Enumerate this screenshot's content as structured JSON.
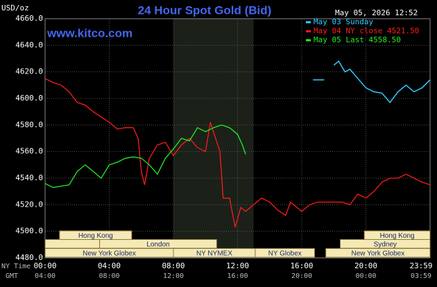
{
  "chart_data": {
    "type": "line",
    "title": "24 Hour Spot Gold (Bid)",
    "date": "May 05, 2026 12:52",
    "site": "www.kitco.com",
    "y_label": "USD/oz",
    "x_label": "NY Time",
    "x2_label": "GMT",
    "ylim": [
      4480,
      4660
    ],
    "yticks": [
      {
        "value": 4480,
        "label": "4480.0"
      },
      {
        "value": 4500,
        "label": "4500.0"
      },
      {
        "value": 4520,
        "label": "4520.0"
      },
      {
        "value": 4540,
        "label": "4540.0"
      },
      {
        "value": 4560,
        "label": "4560.0"
      },
      {
        "value": 4580,
        "label": "4580.0"
      },
      {
        "value": 4600,
        "label": "4600.0"
      },
      {
        "value": 4620,
        "label": "4620.0"
      },
      {
        "value": 4640,
        "label": "4640.0"
      },
      {
        "value": 4660,
        "label": "4660.0"
      }
    ],
    "xlim": [
      0,
      24
    ],
    "xticks": [
      {
        "value": 0,
        "label": "00:00"
      },
      {
        "value": 4,
        "label": "04:00"
      },
      {
        "value": 8,
        "label": "08:00"
      },
      {
        "value": 12,
        "label": "12:00"
      },
      {
        "value": 16,
        "label": "16:00"
      },
      {
        "value": 20,
        "label": "20:00"
      },
      {
        "value": 24,
        "label": "23:59"
      }
    ],
    "x2ticks": [
      {
        "value": 0,
        "label": "04:00"
      },
      {
        "value": 4,
        "label": "08:00"
      },
      {
        "value": 8,
        "label": "12:00"
      },
      {
        "value": 12,
        "label": "16:00"
      },
      {
        "value": 16,
        "label": "20:00"
      },
      {
        "value": 20,
        "label": "00:00"
      },
      {
        "value": 24,
        "label": "03:59"
      }
    ],
    "grid": true,
    "highlight_x": [
      8,
      13
    ],
    "sessions": [
      {
        "label": "Hong Kong",
        "start": 0.9,
        "end": 5.4,
        "row": 0
      },
      {
        "label": "Hong Kong",
        "start": 19.9,
        "end": 24,
        "row": 0
      },
      {
        "start": 0,
        "end": 3.4,
        "row": 1
      },
      {
        "label": "London",
        "start": 3.4,
        "end": 10.7,
        "row": 1
      },
      {
        "label": "Sydney",
        "start": 18.4,
        "end": 24,
        "row": 1
      },
      {
        "label": "New York Globex",
        "start": 0,
        "end": 8,
        "row": 2
      },
      {
        "label": "NY NYMEX",
        "start": 8,
        "end": 13.1,
        "row": 2
      },
      {
        "label": "NY Globex",
        "start": 13.1,
        "end": 16.8,
        "row": 2
      },
      {
        "label": "New York Globex",
        "start": 17.5,
        "end": 24,
        "row": 2
      }
    ],
    "series": [
      {
        "name": "May 03 Sunday",
        "color": "#33ccff",
        "x": [
          16.7,
          17.4,
          17.5,
          18,
          18.3,
          18.7,
          19,
          19.5,
          20,
          20.5,
          21,
          21.5,
          22,
          22.5,
          23,
          23.5,
          24
        ],
        "values": [
          4614,
          4614,
          null,
          4625,
          4628,
          4620,
          4622,
          4615,
          4608,
          4605,
          4604,
          4597,
          4605,
          4610,
          4605,
          4608,
          4614
        ]
      },
      {
        "name": "May 04 NY close 4521.50",
        "color": "#ff1a1a",
        "x": [
          0,
          0.5,
          1,
          1.5,
          2,
          2.5,
          3,
          3.5,
          4,
          4.5,
          5,
          5.5,
          5.8,
          6,
          6.2,
          6.5,
          7,
          7.5,
          8,
          8.5,
          9,
          9.5,
          10,
          10.3,
          10.9,
          11.1,
          11.5,
          11.85,
          12.2,
          12.5,
          13,
          13.5,
          14,
          14.5,
          15,
          15.3,
          16,
          16.5,
          17,
          17.5,
          18,
          18.5,
          19,
          19.5,
          20,
          20.5,
          21,
          21.5,
          22,
          22.5,
          23,
          23.5,
          24
        ],
        "values": [
          4615,
          4612,
          4610,
          4605,
          4597,
          4595,
          4590,
          4586,
          4582,
          4577,
          4578,
          4578,
          4570,
          4545,
          4535,
          4555,
          4565,
          4567,
          4557,
          4565,
          4570,
          4563,
          4560,
          4582,
          4560,
          4525,
          4525,
          4503,
          4518,
          4515,
          4520,
          4525,
          4522,
          4516,
          4512,
          4522,
          4515,
          4520,
          4522,
          4522,
          4522,
          4522,
          4520,
          4528,
          4525,
          4530,
          4537,
          4540,
          4540,
          4543,
          4540,
          4537,
          4535
        ]
      },
      {
        "name": "May 05 Last 4558.50",
        "color": "#22ee22",
        "x": [
          0,
          0.5,
          1,
          1.5,
          2,
          2.5,
          3,
          3.5,
          4,
          4.5,
          5,
          5.5,
          6,
          6.5,
          7,
          7.5,
          8,
          8.5,
          9,
          9.5,
          10,
          10.5,
          11,
          11.5,
          12,
          12.3,
          12.5
        ],
        "values": [
          4536,
          4533,
          4534,
          4535,
          4545,
          4550,
          4545,
          4540,
          4550,
          4552,
          4555,
          4556,
          4555,
          4550,
          4543,
          4555,
          4562,
          4570,
          4568,
          4578,
          4575,
          4578,
          4580,
          4578,
          4573,
          4565,
          4558
        ]
      }
    ]
  }
}
